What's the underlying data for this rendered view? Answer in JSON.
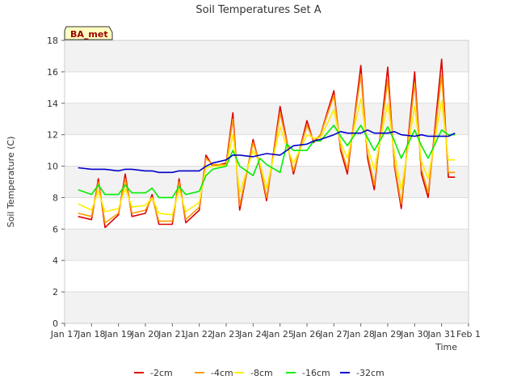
{
  "chart_data": {
    "type": "line",
    "title": "Soil Temperatures Set A",
    "xlabel": "Time",
    "ylabel": "Soil Temperature (C)",
    "ylim": [
      0,
      18
    ],
    "yticks": [
      0,
      2,
      4,
      6,
      8,
      10,
      12,
      14,
      16,
      18
    ],
    "xlim": [
      "2024-01-17",
      "2024-02-01"
    ],
    "x_tick_labels": [
      "Jan 17",
      "Jan 18",
      "Jan 19",
      "Jan 20",
      "Jan 21",
      "Jan 22",
      "Jan 23",
      "Jan 24",
      "Jan 25",
      "Jan 26",
      "Jan 27",
      "Jan 28",
      "Jan 29",
      "Jan 30",
      "Jan 31",
      "Feb 1"
    ],
    "grid": true,
    "banded_background": true,
    "annotation": "BA_met",
    "legend_position": "bottom",
    "x": [
      "2024-01-17 12:00",
      "2024-01-18 00:00",
      "2024-01-18 06:00",
      "2024-01-18 12:00",
      "2024-01-19 00:00",
      "2024-01-19 06:00",
      "2024-01-19 12:00",
      "2024-01-20 00:00",
      "2024-01-20 06:00",
      "2024-01-20 12:00",
      "2024-01-21 00:00",
      "2024-01-21 06:00",
      "2024-01-21 12:00",
      "2024-01-22 00:00",
      "2024-01-22 06:00",
      "2024-01-22 12:00",
      "2024-01-23 00:00",
      "2024-01-23 06:00",
      "2024-01-23 12:00",
      "2024-01-24 00:00",
      "2024-01-24 06:00",
      "2024-01-24 12:00",
      "2024-01-25 00:00",
      "2024-01-25 06:00",
      "2024-01-25 12:00",
      "2024-01-26 00:00",
      "2024-01-26 06:00",
      "2024-01-26 12:00",
      "2024-01-27 00:00",
      "2024-01-27 06:00",
      "2024-01-27 12:00",
      "2024-01-28 00:00",
      "2024-01-28 06:00",
      "2024-01-28 12:00",
      "2024-01-29 00:00",
      "2024-01-29 06:00",
      "2024-01-29 12:00",
      "2024-01-30 00:00",
      "2024-01-30 06:00",
      "2024-01-30 12:00",
      "2024-01-31 00:00",
      "2024-01-31 06:00",
      "2024-01-31 12:00"
    ],
    "series": [
      {
        "name": "-2cm",
        "color": "#dd0000",
        "values": [
          6.8,
          6.6,
          9.2,
          6.1,
          6.9,
          9.5,
          6.8,
          7.0,
          8.2,
          6.3,
          6.3,
          9.2,
          6.4,
          7.2,
          10.7,
          10.0,
          10.2,
          13.4,
          7.2,
          11.7,
          10.0,
          7.8,
          13.8,
          11.6,
          9.5,
          12.9,
          11.5,
          12.0,
          14.8,
          11.0,
          9.5,
          16.4,
          10.5,
          8.5,
          16.3,
          10.0,
          7.3,
          16.0,
          9.5,
          8.0,
          16.8,
          9.3,
          9.3
        ]
      },
      {
        "name": "-4cm",
        "color": "#ff9900",
        "values": [
          7.0,
          6.8,
          9.0,
          6.4,
          7.0,
          9.2,
          7.0,
          7.2,
          8.0,
          6.5,
          6.5,
          9.0,
          6.6,
          7.4,
          10.5,
          10.1,
          10.1,
          13.0,
          7.5,
          11.5,
          10.1,
          8.0,
          13.4,
          11.5,
          9.7,
          12.6,
          11.6,
          12.0,
          14.5,
          11.2,
          9.8,
          15.8,
          10.8,
          8.8,
          15.5,
          10.2,
          7.6,
          15.3,
          9.8,
          8.3,
          15.8,
          9.6,
          9.6
        ]
      },
      {
        "name": "-8cm",
        "color": "#ffee00",
        "values": [
          7.6,
          7.2,
          8.4,
          7.1,
          7.3,
          8.6,
          7.4,
          7.5,
          8.0,
          7.0,
          6.9,
          8.5,
          7.1,
          7.7,
          9.9,
          10.0,
          10.0,
          12.0,
          8.3,
          11.0,
          10.2,
          8.6,
          12.5,
          11.2,
          10.2,
          12.0,
          11.8,
          11.8,
          13.6,
          11.5,
          10.5,
          14.3,
          11.2,
          9.8,
          14.0,
          10.8,
          8.5,
          13.8,
          10.3,
          9.2,
          14.2,
          10.4,
          10.4
        ]
      },
      {
        "name": "-16cm",
        "color": "#00ee00",
        "values": [
          8.5,
          8.2,
          8.8,
          8.2,
          8.2,
          8.8,
          8.3,
          8.3,
          8.6,
          8.0,
          8.0,
          8.7,
          8.2,
          8.4,
          9.4,
          9.8,
          10.0,
          11.0,
          10.0,
          9.4,
          10.5,
          10.1,
          9.6,
          11.4,
          11.0,
          11.0,
          11.6,
          11.6,
          12.6,
          11.9,
          11.3,
          12.6,
          11.8,
          11.0,
          12.5,
          11.6,
          10.5,
          12.3,
          11.3,
          10.5,
          12.3,
          12.0,
          12.0
        ]
      },
      {
        "name": "-32cm",
        "color": "#0000cc",
        "values": [
          9.9,
          9.8,
          9.8,
          9.8,
          9.7,
          9.8,
          9.8,
          9.7,
          9.7,
          9.6,
          9.6,
          9.7,
          9.7,
          9.7,
          10.0,
          10.2,
          10.4,
          10.7,
          10.7,
          10.6,
          10.7,
          10.8,
          10.7,
          11.0,
          11.3,
          11.4,
          11.6,
          11.7,
          12.0,
          12.2,
          12.1,
          12.1,
          12.3,
          12.1,
          12.1,
          12.2,
          12.0,
          11.9,
          12.0,
          11.9,
          11.9,
          11.9,
          12.1
        ]
      }
    ]
  }
}
